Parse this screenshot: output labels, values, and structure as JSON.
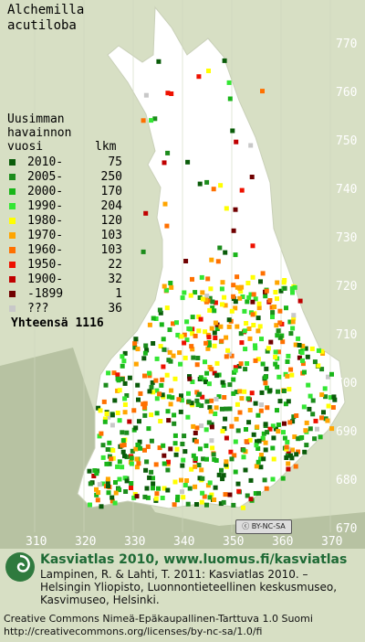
{
  "title": [
    "Alchemilla",
    "acutiloba"
  ],
  "legend": {
    "header": [
      "Uusimman",
      "havainnon",
      "vuosi"
    ],
    "count_header": "lkm",
    "rows": [
      {
        "label": "2010-",
        "count": "75",
        "color": "#0a5c0a"
      },
      {
        "label": "2005-",
        "count": "250",
        "color": "#1c8c1c"
      },
      {
        "label": "2000-",
        "count": "170",
        "color": "#19b519"
      },
      {
        "label": "1990-",
        "count": "204",
        "color": "#33e633"
      },
      {
        "label": "1980-",
        "count": "120",
        "color": "#ffff00"
      },
      {
        "label": "1970-",
        "count": "103",
        "color": "#ffa500"
      },
      {
        "label": "1960-",
        "count": "103",
        "color": "#ff7000"
      },
      {
        "label": "1950-",
        "count": "22",
        "color": "#ee1100"
      },
      {
        "label": "1900-",
        "count": "32",
        "color": "#c00000"
      },
      {
        "label": "-1899",
        "count": "1",
        "color": "#700000"
      },
      {
        "label": "???",
        "count": "36",
        "color": "#c8c8c8"
      }
    ],
    "total": "Yhteensä 1116"
  },
  "axis": {
    "x_ticks": [
      "310",
      "320",
      "330",
      "340",
      "350",
      "360",
      "370"
    ],
    "y_ticks": [
      "770",
      "760",
      "750",
      "740",
      "730",
      "720",
      "710",
      "700",
      "690",
      "680",
      "670"
    ]
  },
  "colors": {
    "land": "#ffffff",
    "sea": "#b7c2a2",
    "background": "#d7dfc4",
    "grid": "#cfd7bd"
  },
  "license_badge": "BY-NC-SA",
  "footer": {
    "headline": "Kasviatlas 2010, www.luomus.fi/kasviatlas",
    "line1": "Lampinen, R. & Lahti, T. 2011: Kasviatlas 2010. –",
    "line2": "Helsingin Yliopisto, Luonnontieteellinen keskusmuseo,",
    "line3": "Kasvimuseo, Helsinki."
  },
  "license": {
    "line1": "Creative Commons Nimeä-Epäkaupallinen-Tarttuva 1.0 Suomi",
    "line2": "http://creativecommons.org/licenses/by-nc-sa/1.0/fi"
  }
}
